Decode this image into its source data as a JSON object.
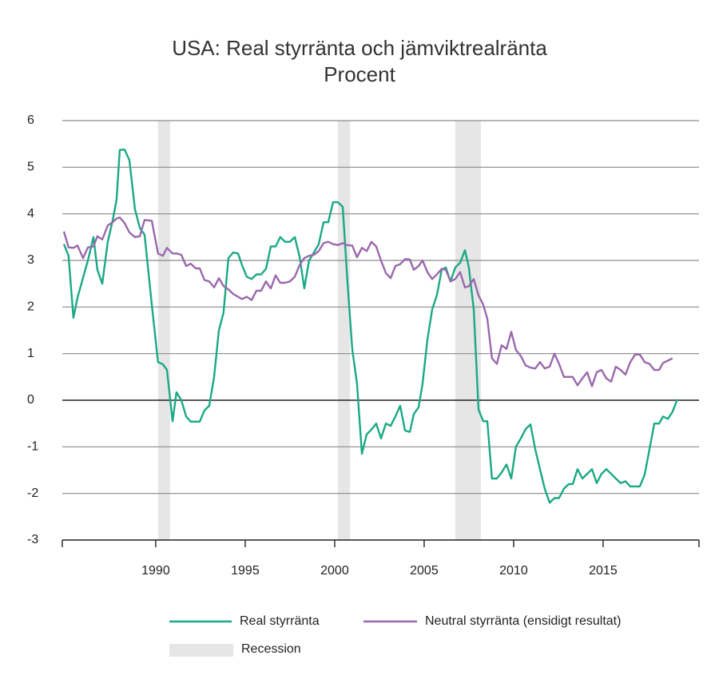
{
  "chart_data": {
    "type": "line",
    "title": "USA: Real styrränta och jämviktrealränta",
    "subtitle": "Procent",
    "x": [
      1984.87,
      1985.13,
      1985.4,
      1985.63,
      1985.94,
      1986.21,
      1986.52,
      1986.74,
      1987.01,
      1987.32,
      1987.59,
      1987.81,
      1987.99,
      1988.26,
      1988.53,
      1988.84,
      1989.11,
      1989.38,
      1989.78,
      1990.13,
      1990.4,
      1990.63,
      1990.94,
      1991.16,
      1991.43,
      1991.7,
      1991.96,
      1992.23,
      1992.46,
      1992.72,
      1992.99,
      1993.26,
      1993.53,
      1993.79,
      1994.06,
      1994.33,
      1994.6,
      1994.82,
      1995.09,
      1995.36,
      1995.63,
      1995.89,
      1996.16,
      1996.43,
      1996.7,
      1996.96,
      1997.23,
      1997.5,
      1997.77,
      1998.04,
      1998.3,
      1998.57,
      1998.84,
      1999.11,
      1999.38,
      1999.64,
      1999.91,
      2000.18,
      2000.45,
      2000.71,
      2000.98,
      2001.25,
      2001.52,
      2001.79,
      2002.05,
      2002.32,
      2002.59,
      2002.86,
      2003.13,
      2003.39,
      2003.66,
      2003.93,
      2004.2,
      2004.42,
      2004.69,
      2004.91,
      2005.18,
      2005.45,
      2005.71,
      2005.98,
      2006.21,
      2006.47,
      2006.74,
      2007.01,
      2007.28,
      2007.5,
      2007.77,
      2008.04,
      2008.3,
      2008.53,
      2008.79,
      2009.06,
      2009.33,
      2009.6,
      2009.87,
      2010.13,
      2010.4,
      2010.67,
      2010.94,
      2011.21,
      2011.47,
      2011.74,
      2012.01,
      2012.28,
      2012.54,
      2012.81,
      2013.08,
      2013.3,
      2013.57,
      2013.84,
      2014.11,
      2014.38,
      2014.64,
      2014.91,
      2015.18,
      2015.45,
      2015.71,
      2015.98,
      2016.25,
      2016.52,
      2016.79,
      2017.05,
      2017.32,
      2017.59,
      2017.86,
      2018.13,
      2018.35,
      2018.62,
      2018.88,
      2019.15
    ],
    "series": [
      {
        "name": "Real styrränta",
        "color": "#1aa985",
        "values": [
          3.35,
          3.1,
          1.77,
          2.2,
          2.63,
          3.0,
          3.5,
          2.8,
          2.5,
          3.4,
          3.85,
          4.3,
          5.37,
          5.38,
          5.15,
          4.1,
          3.7,
          3.55,
          2.05,
          0.82,
          0.77,
          0.65,
          -0.45,
          0.17,
          0.0,
          -0.35,
          -0.46,
          -0.46,
          -0.46,
          -0.22,
          -0.12,
          0.5,
          1.5,
          1.88,
          3.05,
          3.17,
          3.15,
          2.9,
          2.65,
          2.6,
          2.7,
          2.7,
          2.82,
          3.3,
          3.3,
          3.5,
          3.4,
          3.4,
          3.5,
          3.08,
          2.4,
          3.0,
          3.17,
          3.35,
          3.82,
          3.82,
          4.25,
          4.25,
          4.15,
          2.57,
          1.1,
          0.35,
          -1.15,
          -0.73,
          -0.63,
          -0.5,
          -0.82,
          -0.5,
          -0.55,
          -0.35,
          -0.12,
          -0.65,
          -0.68,
          -0.3,
          -0.15,
          0.35,
          1.3,
          1.95,
          2.25,
          2.8,
          2.85,
          2.55,
          2.85,
          2.95,
          3.22,
          2.85,
          1.95,
          -0.2,
          -0.45,
          -0.45,
          -1.68,
          -1.68,
          -1.55,
          -1.38,
          -1.68,
          -1.0,
          -0.82,
          -0.62,
          -0.52,
          -1.05,
          -1.48,
          -1.9,
          -2.2,
          -2.1,
          -2.1,
          -1.9,
          -1.8,
          -1.8,
          -1.48,
          -1.68,
          -1.58,
          -1.48,
          -1.78,
          -1.58,
          -1.48,
          -1.58,
          -1.68,
          -1.78,
          -1.74,
          -1.85,
          -1.85,
          -1.85,
          -1.6,
          -1.05,
          -0.5,
          -0.5,
          -0.35,
          -0.4,
          -0.25,
          0.02
        ]
      },
      {
        "name": "Neutral styrränta (ensidigt resultat)",
        "color": "#9a68ad",
        "values": [
          3.62,
          3.28,
          3.27,
          3.32,
          3.05,
          3.28,
          3.3,
          3.52,
          3.45,
          3.75,
          3.82,
          3.9,
          3.92,
          3.8,
          3.6,
          3.5,
          3.52,
          3.87,
          3.85,
          3.15,
          3.1,
          3.27,
          3.15,
          3.15,
          3.12,
          2.88,
          2.93,
          2.83,
          2.83,
          2.58,
          2.55,
          2.42,
          2.62,
          2.45,
          2.38,
          2.28,
          2.22,
          2.17,
          2.22,
          2.15,
          2.35,
          2.35,
          2.55,
          2.4,
          2.68,
          2.52,
          2.52,
          2.55,
          2.65,
          2.9,
          3.05,
          3.1,
          3.12,
          3.2,
          3.37,
          3.4,
          3.35,
          3.33,
          3.37,
          3.33,
          3.32,
          3.07,
          3.27,
          3.2,
          3.4,
          3.3,
          3.0,
          2.73,
          2.62,
          2.88,
          2.92,
          3.03,
          3.02,
          2.8,
          2.88,
          3.0,
          2.75,
          2.6,
          2.7,
          2.82,
          2.8,
          2.55,
          2.6,
          2.75,
          2.42,
          2.45,
          2.6,
          2.25,
          2.05,
          1.75,
          0.9,
          0.78,
          1.18,
          1.1,
          1.47,
          1.08,
          0.95,
          0.75,
          0.7,
          0.68,
          0.82,
          0.68,
          0.72,
          1.0,
          0.78,
          0.5,
          0.5,
          0.5,
          0.32,
          0.47,
          0.6,
          0.3,
          0.6,
          0.65,
          0.47,
          0.4,
          0.72,
          0.65,
          0.55,
          0.82,
          0.98,
          0.98,
          0.82,
          0.78,
          0.65,
          0.65,
          0.8,
          0.85,
          0.9,
          null
        ]
      }
    ],
    "recession_label": "Recession",
    "recession_color": "#e6e6e6",
    "recessions": [
      [
        1990.13,
        1990.8
      ],
      [
        2000.18,
        2000.85
      ],
      [
        2006.74,
        2008.17
      ]
    ],
    "xlim": [
      1984.78,
      2020.36
    ],
    "xticks": [
      1990,
      1995,
      2000,
      2005,
      2010,
      2015
    ],
    "ylim": [
      -3,
      6
    ],
    "yticks": [
      -3,
      -2,
      -1,
      0,
      1,
      2,
      3,
      4,
      5,
      6
    ],
    "grid": true
  }
}
